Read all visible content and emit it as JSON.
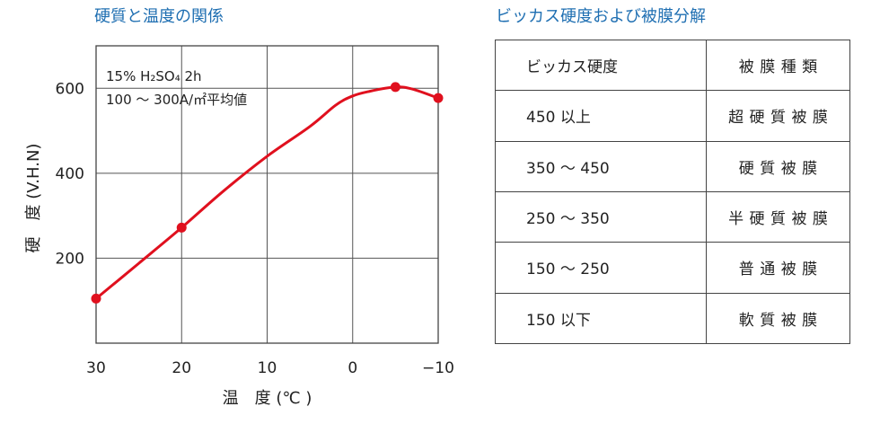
{
  "chart_title": "硬質と温度の関係",
  "table_title": "ビッカス硬度および被膜分解",
  "chart_data": {
    "type": "line",
    "title": "硬質と温度の関係",
    "annotation": [
      "15% H₂SO₄ 2h",
      "100 ～ 300A/㎡平均値"
    ],
    "xlabel": "温　度 (℃ )",
    "ylabel": "硬　度 (V.H.N)",
    "xlim": [
      30,
      -10
    ],
    "ylim": [
      0,
      700
    ],
    "x_ticks": [
      30,
      20,
      10,
      0,
      -10
    ],
    "x_tick_labels": [
      "30",
      "20",
      "10",
      "0",
      "−10"
    ],
    "y_ticks": [
      200,
      400,
      600
    ],
    "y_tick_labels": [
      "200",
      "400",
      "600"
    ],
    "grid": true,
    "color": "#e0101e",
    "series": [
      {
        "x": [
          30,
          20,
          -5,
          -10
        ],
        "y": [
          105,
          272,
          603,
          577
        ]
      }
    ],
    "curve": [
      [
        30,
        105
      ],
      [
        25,
        188
      ],
      [
        20,
        272
      ],
      [
        15,
        360
      ],
      [
        10,
        440
      ],
      [
        5,
        510
      ],
      [
        2,
        560
      ],
      [
        0,
        582
      ],
      [
        -2,
        593
      ],
      [
        -5,
        603
      ],
      [
        -7,
        598
      ],
      [
        -10,
        577
      ]
    ]
  },
  "table": {
    "headers": [
      "ビッカス硬度",
      "被膜種類"
    ],
    "rows": [
      [
        "450 以上",
        "超硬質被膜"
      ],
      [
        "350 ～ 450",
        "硬質被膜"
      ],
      [
        "250 ～ 350",
        "半硬質被膜"
      ],
      [
        "150 ～ 250",
        "普通被膜"
      ],
      [
        "150 以下",
        "軟質被膜"
      ]
    ]
  }
}
